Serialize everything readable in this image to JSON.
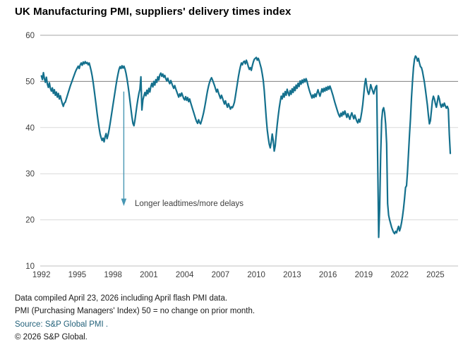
{
  "title": "UK Manufacturing PMI, suppliers' delivery times index",
  "annotation": {
    "label": "Longer leadtimes/more delays"
  },
  "footnotes": [
    "Data compiled April 23, 2026 including April flash PMI data.",
    "PMI (Purchasing Managers' Index) 50 = no change on prior month.",
    "Source: S&P Global PMI .",
    "© 2026 S&P Global."
  ],
  "colors": {
    "line": "#14708D",
    "arrow": "#4796B3",
    "grid_reference": "#808080",
    "grid_top": "#A6A6A6",
    "grid_light": "#D9D9D9",
    "axis_bottom": "#BFBFBF",
    "tick_text": "#404040"
  },
  "y_axis": {
    "ticks": [
      60,
      50,
      40,
      30,
      20,
      10
    ]
  },
  "x_axis": {
    "ticks": [
      1992,
      1995,
      1998,
      2001,
      2004,
      2007,
      2010,
      2013,
      2016,
      2019,
      2022,
      2025
    ]
  },
  "chart_data": {
    "type": "line",
    "title": "UK Manufacturing PMI, suppliers' delivery times index",
    "xlabel": "",
    "ylabel": "",
    "ylim": [
      10,
      60
    ],
    "xlim": [
      1991.9,
      2026.9
    ],
    "grid": "horizontal",
    "reference_line": 50,
    "legend": "none",
    "annotation": {
      "text": "Longer leadtimes/more delays",
      "arrow": "down",
      "x": 1998.9,
      "y_from": 47.8,
      "y_to": 23.0
    },
    "series": [
      {
        "name": "Suppliers' delivery times index",
        "frequency": "monthly",
        "start_year": 1992,
        "start_month": 1,
        "end_label": "April 2026",
        "values": [
          51.2,
          50.4,
          51.9,
          50.6,
          49.8,
          50.9,
          49.4,
          48.7,
          49.7,
          48.5,
          47.9,
          48.6,
          47.4,
          48.2,
          47.0,
          47.7,
          46.6,
          47.4,
          46.2,
          46.9,
          46.0,
          45.2,
          44.6,
          45.3,
          45.5,
          46.2,
          46.9,
          47.6,
          48.3,
          49.0,
          49.6,
          50.2,
          50.8,
          51.4,
          52.0,
          52.5,
          52.9,
          53.3,
          52.8,
          53.6,
          54.0,
          53.5,
          54.2,
          53.8,
          54.3,
          53.9,
          54.1,
          53.6,
          54.0,
          53.2,
          52.3,
          51.2,
          49.8,
          48.2,
          46.5,
          44.8,
          43.0,
          41.4,
          39.9,
          38.6,
          37.8,
          37.2,
          37.7,
          36.9,
          38.0,
          38.7,
          37.6,
          38.4,
          39.5,
          40.8,
          42.2,
          43.6,
          45.0,
          46.4,
          47.8,
          49.2,
          50.5,
          51.6,
          52.6,
          53.2,
          52.8,
          53.4,
          52.9,
          53.3,
          52.7,
          51.8,
          50.6,
          49.2,
          47.6,
          45.8,
          44.0,
          42.3,
          40.9,
          40.4,
          41.6,
          43.2,
          44.8,
          46.2,
          47.4,
          48.3,
          51.0,
          43.8,
          46.0,
          46.8,
          47.6,
          46.9,
          48.1,
          47.3,
          48.5,
          47.7,
          48.9,
          49.6,
          48.8,
          50.0,
          49.2,
          50.4,
          49.8,
          51.0,
          50.3,
          51.4,
          51.8,
          51.1,
          51.6,
          50.9,
          51.3,
          50.6,
          50.1,
          50.7,
          50.0,
          49.5,
          50.2,
          49.6,
          49.0,
          48.5,
          49.1,
          48.4,
          47.8,
          47.2,
          46.6,
          47.3,
          46.8,
          47.5,
          46.9,
          46.3,
          46.0,
          46.7,
          45.9,
          46.5,
          45.6,
          46.2,
          45.4,
          44.7,
          44.0,
          43.3,
          42.6,
          41.9,
          41.3,
          40.9,
          41.7,
          41.1,
          40.8,
          41.5,
          42.3,
          43.2,
          44.3,
          45.5,
          46.8,
          48.0,
          49.0,
          49.8,
          50.4,
          50.8,
          50.3,
          49.7,
          49.1,
          48.4,
          47.7,
          48.3,
          47.5,
          46.9,
          46.3,
          47.0,
          46.4,
          45.7,
          45.1,
          45.8,
          45.0,
          44.4,
          45.2,
          44.6,
          44.0,
          44.5,
          44.3,
          44.8,
          45.5,
          46.8,
          48.2,
          49.6,
          51.0,
          52.2,
          53.2,
          54.0,
          53.6,
          54.2,
          54.4,
          53.8,
          54.6,
          54.0,
          53.2,
          52.6,
          53.0,
          52.4,
          53.4,
          54.2,
          54.8,
          55.0,
          55.2,
          54.6,
          55.0,
          54.4,
          53.6,
          52.8,
          51.6,
          50.2,
          48.0,
          45.0,
          42.0,
          39.5,
          37.8,
          36.4,
          35.6,
          36.8,
          38.6,
          37.2,
          34.9,
          36.0,
          38.4,
          40.6,
          42.5,
          44.2,
          45.6,
          46.8,
          46.2,
          47.4,
          46.6,
          47.8,
          47.0,
          48.3,
          47.5,
          46.9,
          48.0,
          47.2,
          48.4,
          47.6,
          48.8,
          48.0,
          49.2,
          48.5,
          49.6,
          48.9,
          50.1,
          49.4,
          50.3,
          49.7,
          50.5,
          49.9,
          50.6,
          50.0,
          49.1,
          48.3,
          47.6,
          47.0,
          46.4,
          47.1,
          46.5,
          47.3,
          46.7,
          47.5,
          48.2,
          47.4,
          46.8,
          47.6,
          48.4,
          47.7,
          48.5,
          47.9,
          48.7,
          48.1,
          48.9,
          48.3,
          49.0,
          48.4,
          47.7,
          47.0,
          46.2,
          45.4,
          44.7,
          44.0,
          43.3,
          42.7,
          42.3,
          43.1,
          42.5,
          43.4,
          42.8,
          43.6,
          42.9,
          42.2,
          43.0,
          42.4,
          41.8,
          42.6,
          43.2,
          42.5,
          41.9,
          42.7,
          42.0,
          41.4,
          41.0,
          41.8,
          41.2,
          42.1,
          43.4,
          45.0,
          47.2,
          49.4,
          50.6,
          49.0,
          47.8,
          47.2,
          48.0,
          49.3,
          48.6,
          47.9,
          47.3,
          48.1,
          48.8,
          49.1,
          33.0,
          16.2,
          22.5,
          34.0,
          41.5,
          43.8,
          44.3,
          43.2,
          40.8,
          36.5,
          23.5,
          21.0,
          20.0,
          19.2,
          18.4,
          17.8,
          17.3,
          17.0,
          17.5,
          17.2,
          18.0,
          18.6,
          17.6,
          18.3,
          19.4,
          20.8,
          22.5,
          24.6,
          27.0,
          27.4,
          30.5,
          34.5,
          38.5,
          42.0,
          46.5,
          50.0,
          53.0,
          54.8,
          55.5,
          55.2,
          54.4,
          55.0,
          54.0,
          53.2,
          53.0,
          52.2,
          51.0,
          49.8,
          48.2,
          46.5,
          44.8,
          42.6,
          40.8,
          41.5,
          43.6,
          45.8,
          46.8,
          46.2,
          45.2,
          44.4,
          45.6,
          46.9,
          46.2,
          45.0,
          44.4,
          45.1,
          44.6,
          45.3,
          44.7,
          44.2,
          44.6,
          44.0,
          38.5,
          34.4
        ]
      }
    ]
  }
}
